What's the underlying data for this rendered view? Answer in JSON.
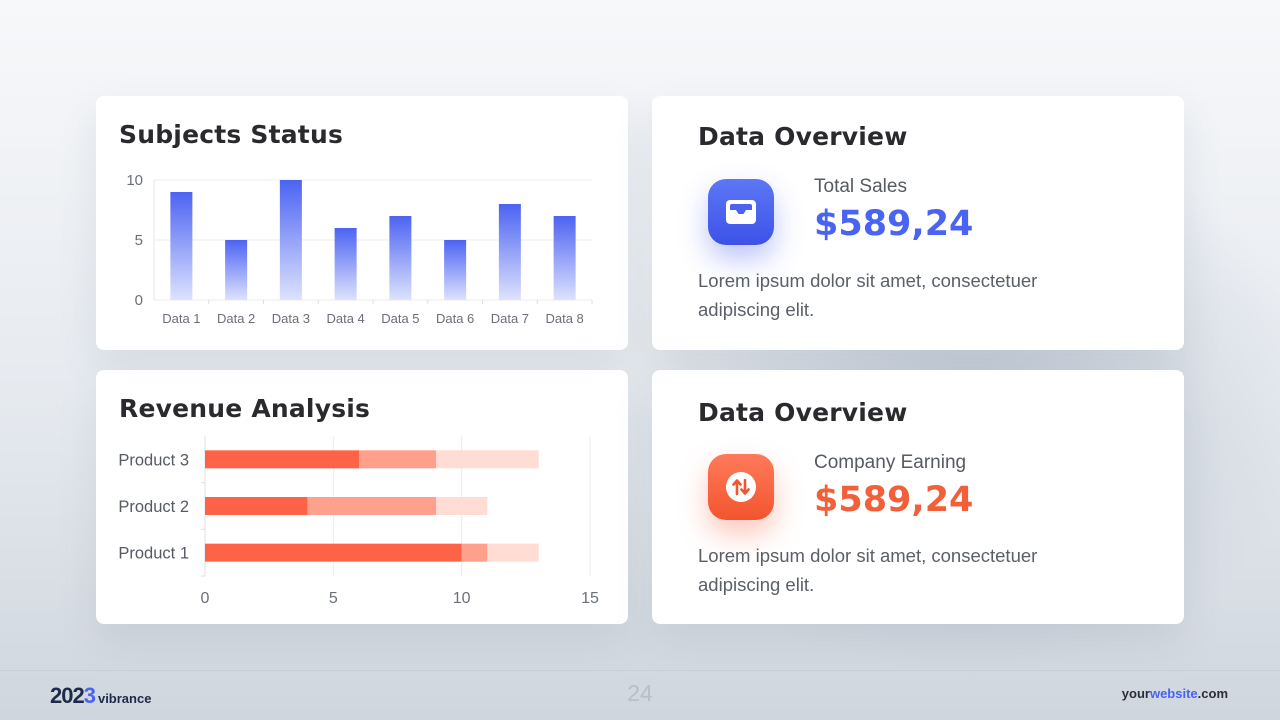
{
  "colors": {
    "accent_blue": "#4a63f0",
    "accent_orange": "#f2603a",
    "bar_blue_top": "#4c63f2",
    "bar_blue_bottom": "#dde2fd",
    "stack_dark": "#ff6347",
    "stack_mid": "#ffa08c",
    "stack_light": "#ffdcd4"
  },
  "subjects_card": {
    "title": "Subjects Status"
  },
  "revenue_card": {
    "title": "Revenue Analysis"
  },
  "overview_sales": {
    "title": "Data Overview",
    "icon": "inbox-tray-icon",
    "label": "Total Sales",
    "value": "$589,24",
    "description": "Lorem ipsum dolor sit amet, consectetuer adipiscing elit."
  },
  "overview_earning": {
    "title": "Data Overview",
    "icon": "arrows-up-down-icon",
    "label": "Company Earning",
    "value": "$589,24",
    "description": "Lorem ipsum dolor sit amet, consectetuer adipiscing elit."
  },
  "footer": {
    "year_main": "202",
    "year_last": "3",
    "brand": "vibrance",
    "page_number": "24",
    "website_prefix": "your",
    "website_hi": "website",
    "website_suffix": ".com"
  },
  "chart_data": [
    {
      "type": "bar",
      "title": "Subjects Status",
      "categories": [
        "Data 1",
        "Data 2",
        "Data 3",
        "Data 4",
        "Data 5",
        "Data 6",
        "Data 7",
        "Data 8"
      ],
      "values": [
        9,
        5,
        10,
        6,
        7,
        5,
        8,
        7
      ],
      "ylim": [
        0,
        10
      ],
      "yticks": [
        "0",
        "5",
        "10"
      ],
      "grid": true,
      "legend": "none"
    },
    {
      "type": "bar",
      "orientation": "horizontal",
      "stacked": true,
      "title": "Revenue Analysis",
      "categories": [
        "Product 1",
        "Product 2",
        "Product 3"
      ],
      "series": [
        {
          "values": [
            10,
            4,
            6
          ]
        },
        {
          "values": [
            1,
            5,
            3
          ]
        },
        {
          "values": [
            2,
            2,
            4
          ]
        }
      ],
      "xlim": [
        0,
        15
      ],
      "xticks": [
        "0",
        "5",
        "10",
        "15"
      ],
      "grid": true,
      "legend": "none"
    }
  ]
}
